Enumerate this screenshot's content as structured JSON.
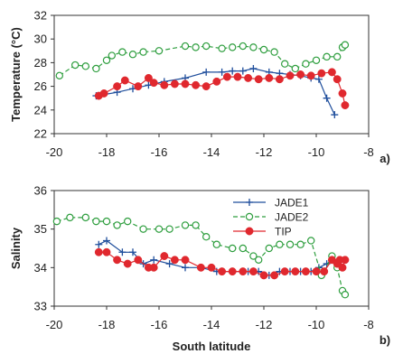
{
  "chart_data": [
    {
      "type": "line",
      "panel_label": "a)",
      "ylabel": "Temperature (°C)",
      "xlim": [
        -20,
        -8
      ],
      "ylim": [
        22,
        32
      ],
      "xticks": [
        "-20",
        "-18",
        "-16",
        "-14",
        "-12",
        "-10",
        "-8"
      ],
      "yticks": [
        "22",
        "24",
        "26",
        "28",
        "30",
        "32"
      ],
      "series": [
        {
          "name": "JADE1",
          "color": "#1f4e9c",
          "marker": "plus",
          "dash": "",
          "x": [
            -18.4,
            -17.6,
            -17.0,
            -16.4,
            -15.8,
            -15.0,
            -14.2,
            -13.6,
            -13.2,
            -12.8,
            -12.4,
            -11.8,
            -11.4,
            -11.0,
            -10.6,
            -10.2,
            -9.9,
            -9.6,
            -9.3
          ],
          "y": [
            25.2,
            25.5,
            25.8,
            26.1,
            26.4,
            26.7,
            27.2,
            27.2,
            27.3,
            27.3,
            27.5,
            27.2,
            27.1,
            27.0,
            26.9,
            26.7,
            26.6,
            25.0,
            23.6
          ]
        },
        {
          "name": "JADE2",
          "color": "#2e9e3e",
          "marker": "circle-open",
          "dash": "5,3",
          "x": [
            -19.8,
            -19.2,
            -18.8,
            -18.4,
            -18.0,
            -17.8,
            -17.4,
            -17.0,
            -16.6,
            -16.0,
            -15.0,
            -14.6,
            -14.2,
            -13.6,
            -13.2,
            -12.8,
            -12.4,
            -12.0,
            -11.6,
            -11.2,
            -10.8,
            -10.4,
            -10.0,
            -9.6,
            -9.2,
            -9.0,
            -8.9
          ],
          "y": [
            26.9,
            27.8,
            27.7,
            27.5,
            28.2,
            28.6,
            28.9,
            28.7,
            28.9,
            29.0,
            29.4,
            29.3,
            29.4,
            29.2,
            29.3,
            29.4,
            29.3,
            29.1,
            28.9,
            27.9,
            27.5,
            27.9,
            28.2,
            28.5,
            28.5,
            29.3,
            29.5
          ]
        },
        {
          "name": "TIP",
          "color": "#e0282e",
          "marker": "circle-filled",
          "dash": "",
          "x": [
            -18.3,
            -18.1,
            -17.6,
            -17.3,
            -16.8,
            -16.4,
            -16.2,
            -15.8,
            -15.4,
            -15.0,
            -14.6,
            -14.2,
            -13.8,
            -13.4,
            -13.0,
            -12.6,
            -12.2,
            -11.8,
            -11.4,
            -11.0,
            -10.6,
            -10.2,
            -9.8,
            -9.4,
            -9.2,
            -9.0,
            -8.9
          ],
          "y": [
            25.2,
            25.4,
            26.0,
            26.5,
            26.0,
            26.7,
            26.3,
            26.1,
            26.2,
            26.2,
            26.1,
            26.0,
            26.4,
            26.8,
            26.8,
            26.7,
            26.6,
            26.7,
            26.6,
            26.9,
            27.0,
            26.9,
            27.1,
            27.2,
            26.6,
            25.4,
            24.4
          ]
        }
      ]
    },
    {
      "type": "line",
      "panel_label": "b)",
      "xlabel": "South latitude",
      "ylabel": "Salinity",
      "xlim": [
        -20,
        -8
      ],
      "ylim": [
        33,
        36
      ],
      "xticks": [
        "-20",
        "-18",
        "-16",
        "-14",
        "-12",
        "-10",
        "-8"
      ],
      "yticks": [
        "33",
        "34",
        "35",
        "36"
      ],
      "series": [
        {
          "name": "JADE1",
          "color": "#1f4e9c",
          "marker": "plus",
          "dash": "",
          "x": [
            -18.3,
            -18.0,
            -17.4,
            -17.0,
            -16.6,
            -16.2,
            -15.6,
            -15.0,
            -14.4,
            -13.8,
            -13.2,
            -12.6,
            -12.2,
            -11.8,
            -11.4,
            -11.0,
            -10.6,
            -10.2,
            -9.9,
            -9.6,
            -9.3
          ],
          "y": [
            34.6,
            34.7,
            34.4,
            34.4,
            34.1,
            34.2,
            34.1,
            34.0,
            34.0,
            33.9,
            33.9,
            33.9,
            33.9,
            33.8,
            33.9,
            33.9,
            33.9,
            33.9,
            34.0,
            34.1,
            34.2
          ]
        },
        {
          "name": "JADE2",
          "color": "#2e9e3e",
          "marker": "circle-open",
          "dash": "5,3",
          "x": [
            -19.9,
            -19.4,
            -18.8,
            -18.4,
            -18.0,
            -17.6,
            -17.2,
            -16.6,
            -16.0,
            -15.6,
            -15.0,
            -14.6,
            -14.2,
            -13.8,
            -13.2,
            -12.8,
            -12.4,
            -12.2,
            -11.8,
            -11.4,
            -11.0,
            -10.6,
            -10.2,
            -9.8,
            -9.4,
            -9.2,
            -9.0,
            -8.9
          ],
          "y": [
            35.2,
            35.3,
            35.3,
            35.2,
            35.2,
            35.1,
            35.2,
            35.0,
            35.0,
            35.0,
            35.1,
            35.1,
            34.8,
            34.6,
            34.5,
            34.5,
            34.3,
            34.2,
            34.5,
            34.6,
            34.6,
            34.6,
            34.7,
            33.8,
            34.3,
            34.0,
            33.4,
            33.3
          ]
        },
        {
          "name": "TIP",
          "color": "#e0282e",
          "marker": "circle-filled",
          "dash": "",
          "x": [
            -18.3,
            -18.0,
            -17.6,
            -17.2,
            -16.8,
            -16.4,
            -16.2,
            -15.8,
            -15.4,
            -15.0,
            -14.4,
            -14.0,
            -13.6,
            -13.2,
            -12.8,
            -12.4,
            -12.0,
            -11.6,
            -11.2,
            -10.8,
            -10.4,
            -10.0,
            -9.7,
            -9.4,
            -9.2,
            -9.1,
            -9.0,
            -8.9
          ],
          "y": [
            34.4,
            34.4,
            34.2,
            34.1,
            34.2,
            34.0,
            34.0,
            34.3,
            34.2,
            34.2,
            34.0,
            34.0,
            33.9,
            33.9,
            33.9,
            33.9,
            33.8,
            33.8,
            33.9,
            33.9,
            33.9,
            33.9,
            33.9,
            34.2,
            34.1,
            34.2,
            34.0,
            34.2
          ]
        }
      ],
      "legend": [
        "JADE1",
        "JADE2",
        "TIP"
      ],
      "legend_position": "top-right"
    }
  ]
}
